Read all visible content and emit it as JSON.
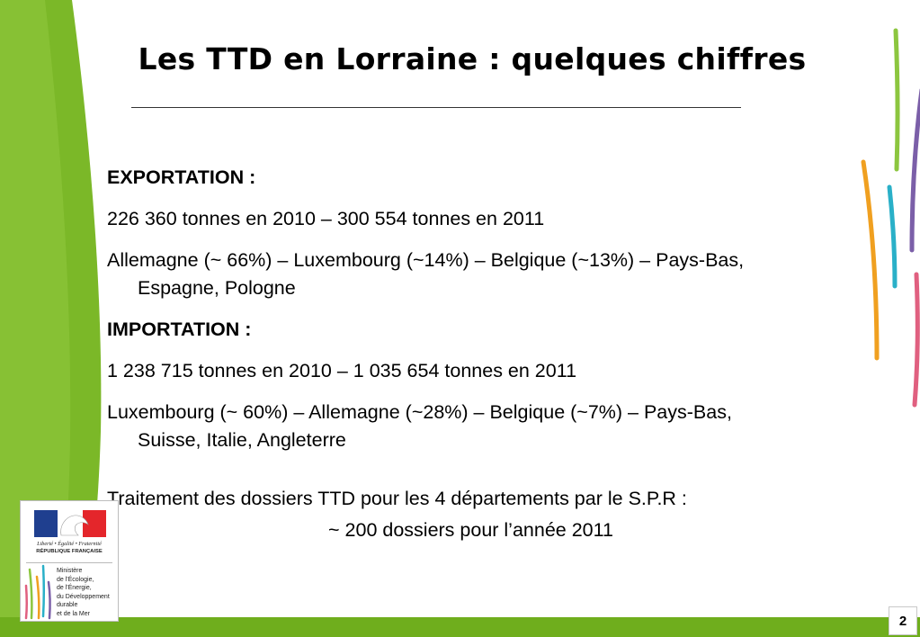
{
  "title": "Les TTD en Lorraine : quelques chiffres",
  "sections": {
    "export_heading": "EXPORTATION :",
    "export_tonnage": "226 360 tonnes en 2010 – 300 554 tonnes en 2011",
    "export_countries_line1": "Allemagne (~ 66%) – Luxembourg (~14%) – Belgique (~13%) – Pays-Bas,",
    "export_countries_line2": "Espagne, Pologne",
    "import_heading": "IMPORTATION :",
    "import_tonnage": "1 238 715 tonnes en 2010 – 1 035 654 tonnes en 2011",
    "import_countries_line1": "Luxembourg (~ 60%) – Allemagne (~28%) – Belgique (~7%) – Pays-Bas,",
    "import_countries_line2": "Suisse, Italie, Angleterre",
    "dossiers_line1": "Traitement des dossiers TTD pour les 4 départements par le S.P.R :",
    "dossiers_line2": "~  200 dossiers pour l’année 2011"
  },
  "logo": {
    "motto": "Liberté • Égalité • Fraternité",
    "republic": "RÉPUBLIQUE FRANÇAISE",
    "ministry_lines": [
      "Ministère",
      "de l'Écologie,",
      "de l'Énergie,",
      "du Développement",
      "durable",
      "et de la Mer"
    ]
  },
  "page_number": "2",
  "colors": {
    "green_band": "#7bb828",
    "bottom_bar": "#6fae1d",
    "deco_green": "#8cc63f",
    "deco_purple": "#7b5fa8",
    "deco_orange": "#f0a020",
    "deco_cyan": "#2ab0c8",
    "deco_pink": "#e06080",
    "flag_blue": "#1f3f8f",
    "flag_red": "#e4262b"
  }
}
